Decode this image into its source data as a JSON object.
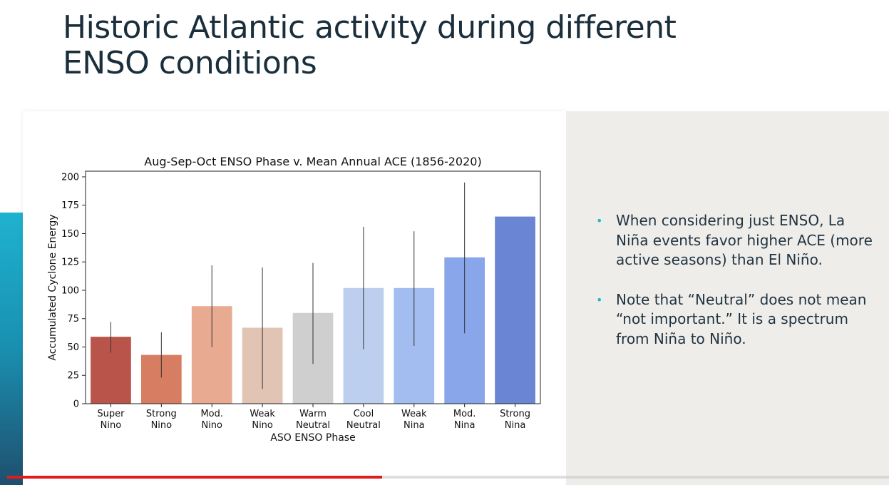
{
  "slide": {
    "title_line1": "Historic Atlantic activity during different",
    "title_line2": "ENSO conditions"
  },
  "bullets": [
    "When considering just ENSO, La Niña events favor higher ACE (more active seasons) than El Niño.",
    "Note that “Neutral” does not mean “not important.” It is a spectrum from Niña to Niño."
  ],
  "colors": {
    "accent": "#2bb4d0",
    "progress": "#e21b1b"
  },
  "video": {
    "progress_fraction": 0.425
  },
  "chart_data": {
    "type": "bar",
    "title": "Aug-Sep-Oct ENSO Phase v. Mean Annual ACE (1856-2020)",
    "xlabel": "ASO ENSO Phase",
    "ylabel": "Accumulated Cyclone Energy",
    "ylim": [
      0,
      205
    ],
    "yticks": [
      0,
      25,
      50,
      75,
      100,
      125,
      150,
      175,
      200
    ],
    "categories": [
      [
        "Super",
        "Nino"
      ],
      [
        "Strong",
        "Nino"
      ],
      [
        "Mod.",
        "Nino"
      ],
      [
        "Weak",
        "Nino"
      ],
      [
        "Warm",
        "Neutral"
      ],
      [
        "Cool",
        "Neutral"
      ],
      [
        "Weak",
        "Nina"
      ],
      [
        "Mod.",
        "Nina"
      ],
      [
        "Strong",
        "Nina"
      ]
    ],
    "values": [
      59,
      43,
      86,
      67,
      80,
      102,
      102,
      129,
      165
    ],
    "error_low": [
      45,
      23,
      50,
      13,
      35,
      48,
      51,
      62,
      165
    ],
    "error_high": [
      72,
      63,
      122,
      120,
      124,
      156,
      152,
      195,
      165
    ],
    "colors": [
      "#b9544a",
      "#d67d62",
      "#e8ab91",
      "#e2c4b5",
      "#cfcfcf",
      "#bccfee",
      "#a3bdf0",
      "#8aa6ea",
      "#6b85d5"
    ],
    "grid": false,
    "legend": "none"
  }
}
